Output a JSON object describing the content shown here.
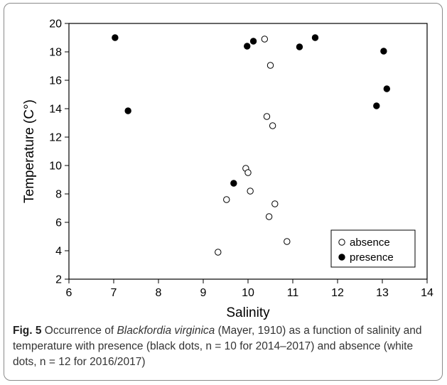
{
  "chart_data": {
    "type": "scatter",
    "xlabel": "Salinity",
    "ylabel": "Temperature (C°)",
    "xlim": [
      6,
      14
    ],
    "ylim": [
      2,
      20
    ],
    "x_ticks": [
      "6",
      "7",
      "8",
      "9",
      "10",
      "11",
      "12",
      "13",
      "14"
    ],
    "y_ticks": [
      "2",
      "4",
      "6",
      "8",
      "10",
      "12",
      "14",
      "16",
      "18",
      "20"
    ],
    "legend_position": "bottom-right",
    "grid": false,
    "series": [
      {
        "name": "absence",
        "marker": "open-circle",
        "color": "#000000",
        "points": [
          [
            10.37,
            18.9
          ],
          [
            10.5,
            17.05
          ],
          [
            10.42,
            13.45
          ],
          [
            10.55,
            12.8
          ],
          [
            9.95,
            9.8
          ],
          [
            10.0,
            9.5
          ],
          [
            9.52,
            7.6
          ],
          [
            10.05,
            8.2
          ],
          [
            10.6,
            7.3
          ],
          [
            10.47,
            6.4
          ],
          [
            10.87,
            4.65
          ],
          [
            9.33,
            3.9
          ]
        ]
      },
      {
        "name": "presence",
        "marker": "filled-circle",
        "color": "#000000",
        "points": [
          [
            7.03,
            19.0
          ],
          [
            7.32,
            13.85
          ],
          [
            9.98,
            18.4
          ],
          [
            10.12,
            18.75
          ],
          [
            11.15,
            18.35
          ],
          [
            11.5,
            19.0
          ],
          [
            13.03,
            18.05
          ],
          [
            13.1,
            15.4
          ],
          [
            12.87,
            14.2
          ],
          [
            9.68,
            8.75
          ]
        ]
      }
    ]
  },
  "caption": {
    "fig_label": "Fig. 5",
    "text_before_species": " Occurrence of ",
    "species": "Blackfordia virginica",
    "text_after_species": " (Mayer, 1910) as a function of salinity and temperature with presence (black dots, n = 10 for 2014–2017) and absence (white dots, n = 12 for 2016/2017)"
  }
}
